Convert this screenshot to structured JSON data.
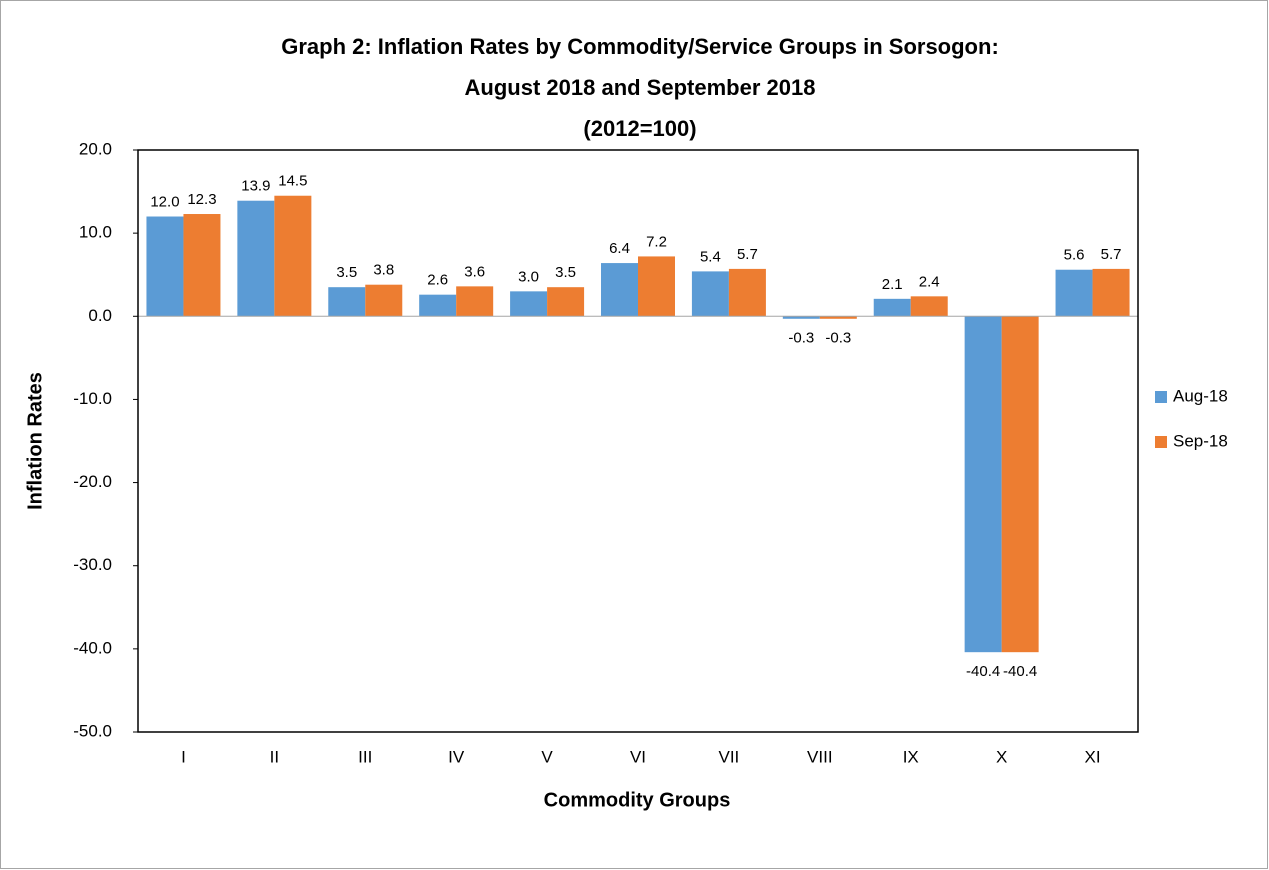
{
  "chart_data": {
    "type": "bar",
    "title": [
      "Graph 2: Inflation Rates by Commodity/Service Groups in Sorsogon:",
      "August 2018 and September 2018",
      "(2012=100)"
    ],
    "x_label": "Commodity Groups",
    "y_label": "Inflation Rates",
    "categories": [
      "I",
      "II",
      "III",
      "IV",
      "V",
      "VI",
      "VII",
      "VIII",
      "IX",
      "X",
      "XI"
    ],
    "series": [
      {
        "name": "Aug-18",
        "color": "#5b9bd5",
        "values": [
          12.0,
          13.9,
          3.5,
          2.6,
          3.0,
          6.4,
          5.4,
          -0.3,
          2.1,
          -40.4,
          5.6
        ],
        "value_labels": [
          "12.0",
          "13.9",
          "3.5",
          "2.6",
          "3.0",
          "6.4",
          "5.4",
          "-0.3",
          "2.1",
          "-40.4",
          "5.6"
        ]
      },
      {
        "name": "Sep-18",
        "color": "#ed7d31",
        "values": [
          12.3,
          14.5,
          3.8,
          3.6,
          3.5,
          7.2,
          5.7,
          -0.3,
          2.4,
          -40.4,
          5.7
        ],
        "value_labels": [
          "12.3",
          "14.5",
          "3.8",
          "3.6",
          "3.5",
          "7.2",
          "5.7",
          "-0.3",
          "2.4",
          "-40.4",
          "5.7"
        ]
      }
    ],
    "ylim": [
      -50,
      20
    ],
    "yticks": [
      {
        "value": -50,
        "label": "-50.0"
      },
      {
        "value": -40,
        "label": "-40.0"
      },
      {
        "value": -30,
        "label": "-30.0"
      },
      {
        "value": -20,
        "label": "-20.0"
      },
      {
        "value": -10,
        "label": "-10.0"
      },
      {
        "value": 0,
        "label": "0.0"
      },
      {
        "value": 10,
        "label": "10.0"
      },
      {
        "value": 20,
        "label": "20.0"
      }
    ],
    "grid": false,
    "legend": "right"
  }
}
